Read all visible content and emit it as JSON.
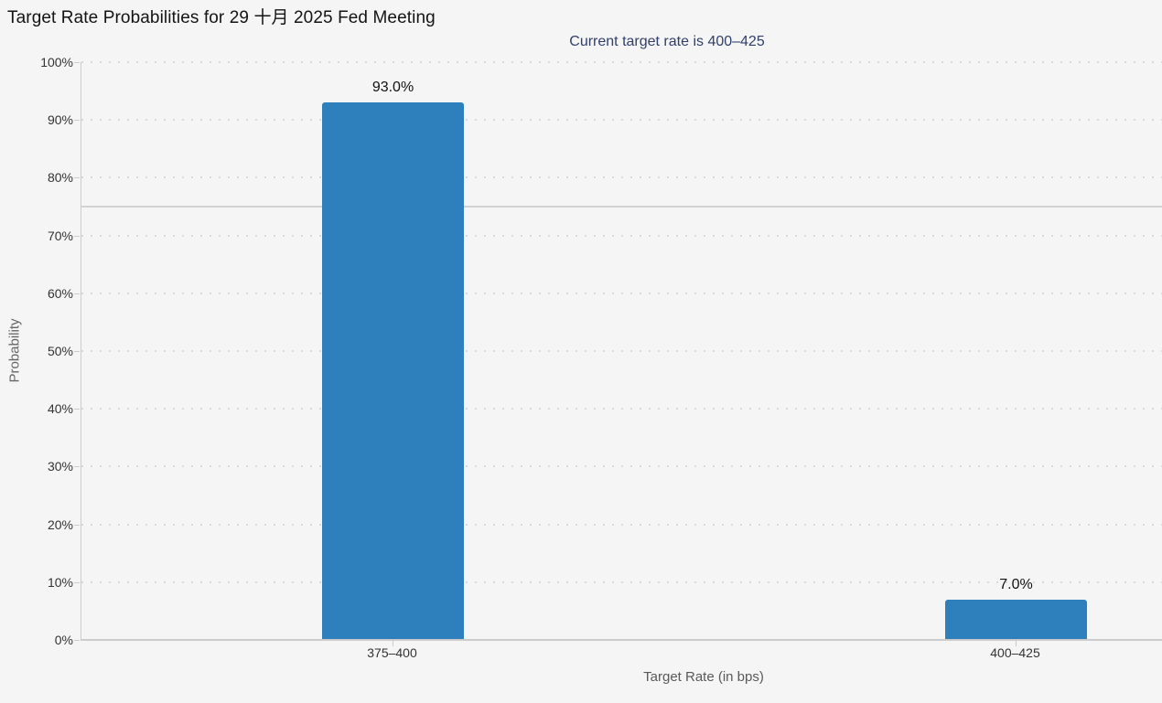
{
  "page": {
    "background_color": "#f5f5f5"
  },
  "chart_data": {
    "type": "bar",
    "title": "Target Rate Probabilities for 29 十月 2025 Fed Meeting",
    "subtitle": "Current target rate is 400–425",
    "subtitle_color": "#31406b",
    "xlabel": "Target Rate (in bps)",
    "ylabel": "Probability",
    "categories": [
      "375–400",
      "400–425"
    ],
    "values": [
      93.0,
      7.0
    ],
    "bar_labels": [
      "93.0%",
      "7.0%"
    ],
    "bar_color": "#2e80bc",
    "ylim": [
      0,
      100
    ],
    "yticks": [
      0,
      10,
      20,
      30,
      40,
      50,
      60,
      70,
      80,
      90,
      100
    ],
    "ytick_labels": [
      "0%",
      "10%",
      "20%",
      "30%",
      "40%",
      "50%",
      "60%",
      "70%",
      "80%",
      "90%",
      "100%"
    ],
    "grid": {
      "style": "dotted",
      "orientation": "horizontal",
      "color": "#d9d9d9"
    },
    "reference_line": {
      "value": 75,
      "style": "solid",
      "color": "#d2d2d2"
    },
    "legend": "none",
    "axis_color": "#cccccc"
  }
}
